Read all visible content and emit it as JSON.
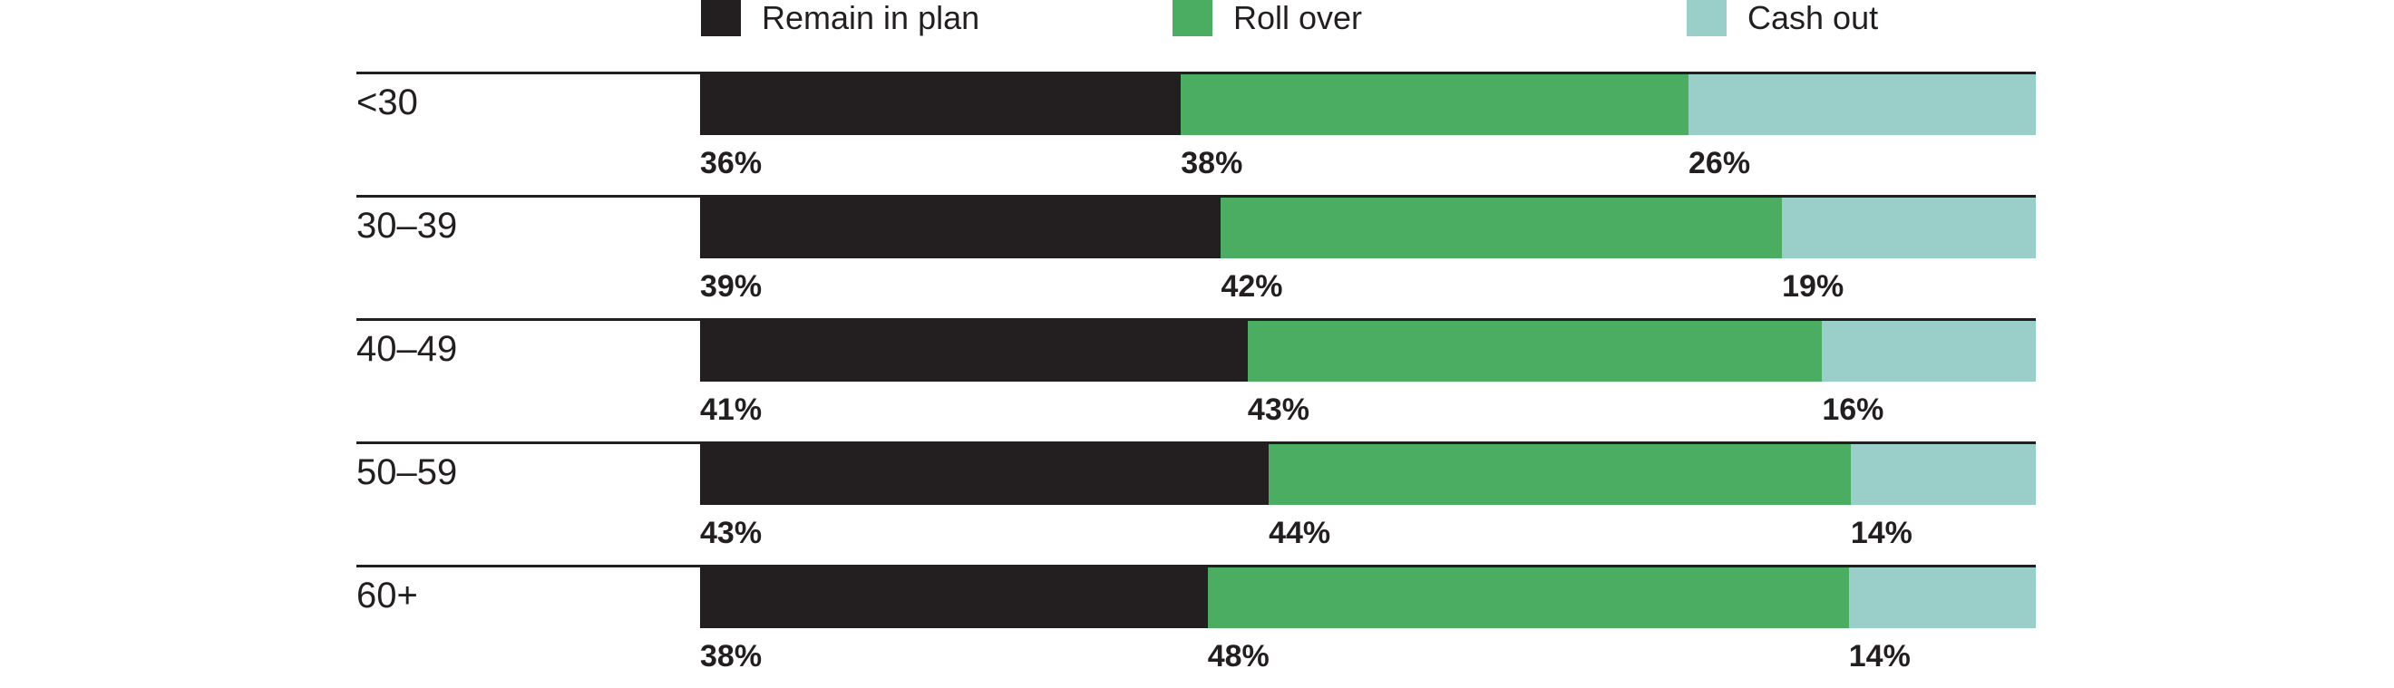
{
  "legend": [
    {
      "label": "Remain in plan",
      "color": "#231f20"
    },
    {
      "label": "Roll over",
      "color": "#4bad61"
    },
    {
      "label": "Cash out",
      "color": "#99cfc8"
    }
  ],
  "chart_data": {
    "type": "bar",
    "variant": "stacked-horizontal",
    "categories": [
      "<30",
      "30–39",
      "40–49",
      "50–59",
      "60+"
    ],
    "series": [
      {
        "name": "Remain in plan",
        "color": "#231f20",
        "values": [
          36,
          39,
          41,
          43,
          38
        ]
      },
      {
        "name": "Roll over",
        "color": "#4bad61",
        "values": [
          38,
          42,
          43,
          44,
          48
        ]
      },
      {
        "name": "Cash out",
        "color": "#99cfc8",
        "values": [
          26,
          19,
          16,
          14,
          14
        ]
      }
    ],
    "value_labels": [
      [
        "36%",
        "38%",
        "26%"
      ],
      [
        "39%",
        "42%",
        "19%"
      ],
      [
        "41%",
        "43%",
        "16%"
      ],
      [
        "43%",
        "44%",
        "14%"
      ],
      [
        "38%",
        "48%",
        "14%"
      ]
    ],
    "value_suffix": "%",
    "xlim": [
      0,
      100
    ],
    "grid": false,
    "legend_position": "top"
  },
  "colors": {
    "text": "#231f20",
    "rule": "#231f20",
    "background": "#ffffff"
  }
}
